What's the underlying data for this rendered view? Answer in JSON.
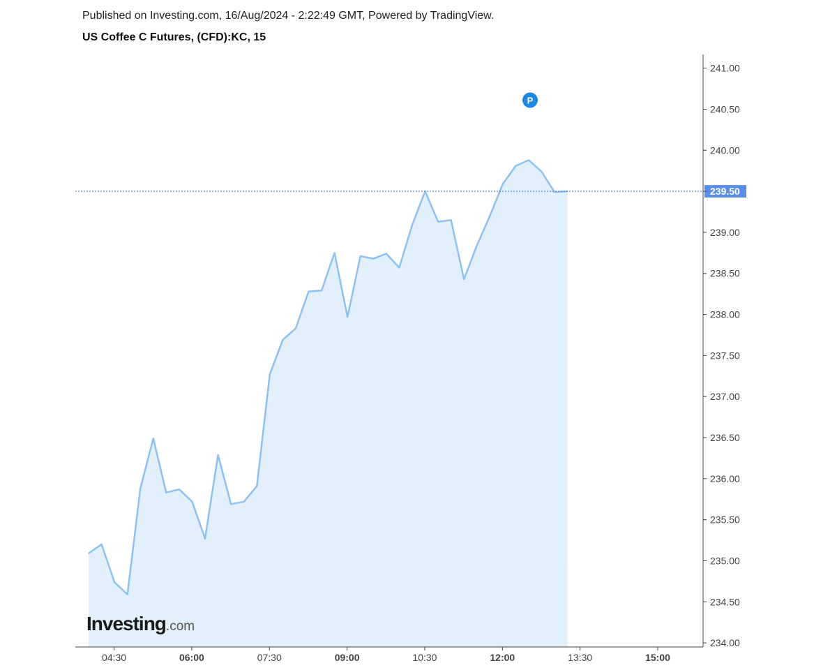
{
  "header": {
    "published": "Published on Investing.com, 16/Aug/2024 - 2:22:49 GMT, Powered by TradingView.",
    "title": "US Coffee C Futures, (CFD):KC, 15"
  },
  "logo": {
    "main": "Investing",
    "suffix": ".com"
  },
  "marker": {
    "label": "P"
  },
  "colors": {
    "line": "#8fc1ef",
    "area": "#e1f0fa",
    "price_line": "#2f6fd8",
    "price_label_bg": "#5b8de6",
    "marker": "#1e88e5",
    "axis": "#444444",
    "tick_text": "#444444"
  },
  "chart_data": {
    "type": "area",
    "title": "US Coffee C Futures, (CFD):KC, 15",
    "xlabel": "",
    "ylabel": "",
    "x_ticks": [
      "04:30",
      "06:00",
      "07:30",
      "09:00",
      "10:30",
      "12:00",
      "13:30",
      "15:00"
    ],
    "x_tick_bold": [
      false,
      true,
      false,
      true,
      false,
      true,
      false,
      true
    ],
    "y_ticks": [
      "241.00",
      "240.50",
      "240.00",
      "239.50",
      "239.00",
      "238.50",
      "238.00",
      "237.50",
      "237.00",
      "236.50",
      "236.00",
      "235.50",
      "235.00",
      "234.50",
      "234.00"
    ],
    "y_label_hidden": "239.50",
    "ylim": [
      233.95,
      241.15
    ],
    "x_range": [
      "04:15",
      "16:00"
    ],
    "series": [
      {
        "x": [
          "04:15",
          "04:30",
          "04:45",
          "05:00",
          "05:15",
          "05:30",
          "05:45",
          "06:00",
          "06:15",
          "06:30",
          "06:45",
          "07:00",
          "07:15",
          "07:30",
          "07:45",
          "08:00",
          "08:15",
          "08:30",
          "08:45",
          "09:00",
          "09:15",
          "09:30",
          "09:45",
          "10:00",
          "10:15",
          "10:30",
          "10:45",
          "11:00",
          "11:15",
          "11:30",
          "11:45",
          "12:00",
          "12:15",
          "12:30",
          "12:45",
          "13:00",
          "13:15",
          "13:30"
        ],
        "values": [
          235.09,
          235.2,
          234.74,
          234.59,
          235.88,
          236.49,
          235.83,
          235.87,
          235.72,
          235.27,
          236.29,
          235.69,
          235.72,
          235.91,
          237.27,
          237.69,
          237.83,
          238.28,
          238.29,
          238.75,
          237.97,
          238.71,
          238.68,
          238.74,
          238.57,
          239.09,
          239.5,
          239.13,
          239.15,
          238.43,
          238.84,
          239.2,
          239.59,
          239.81,
          239.88,
          239.74,
          239.49,
          239.5
        ]
      }
    ],
    "last_price": 239.5,
    "last_price_label": "239.50",
    "marker": {
      "x": "13:00",
      "y": 240.61
    },
    "grid": false,
    "legend": "none"
  }
}
